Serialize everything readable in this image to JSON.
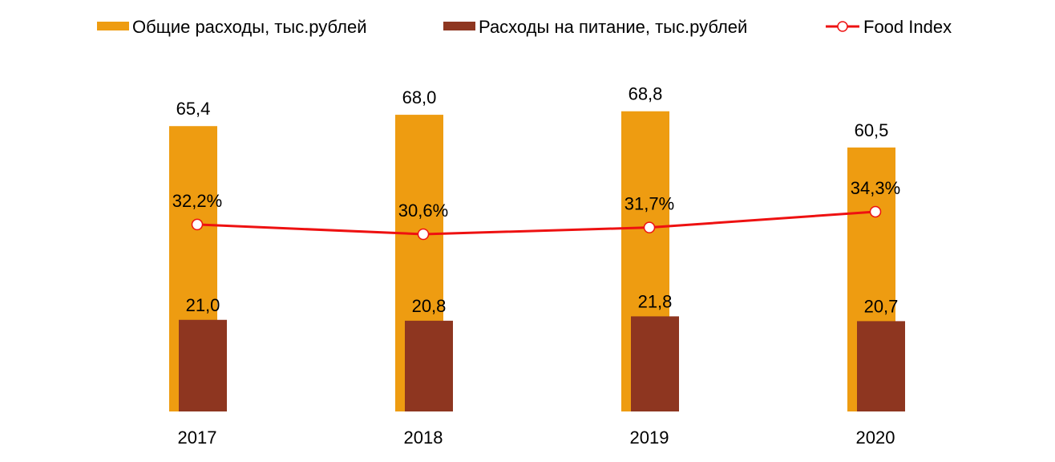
{
  "chart_data": {
    "type": "bar",
    "categories": [
      "2017",
      "2018",
      "2019",
      "2020"
    ],
    "series": [
      {
        "name": "Общие расходы, тыс.рублей",
        "type": "bar",
        "values": [
          65.4,
          68.0,
          68.8,
          60.5
        ],
        "labels": [
          "65,4",
          "68,0",
          "68,8",
          "60,5"
        ],
        "color": "#EE9C11"
      },
      {
        "name": "Расходы на питание, тыс.рублей",
        "type": "bar",
        "values": [
          21.0,
          20.8,
          21.8,
          20.7
        ],
        "labels": [
          "21,0",
          "20,8",
          "21,8",
          "20,7"
        ],
        "color": "#8E3620"
      },
      {
        "name": "Food Index",
        "type": "line",
        "axis": "secondary",
        "unit": "%",
        "values": [
          32.2,
          30.6,
          31.7,
          34.3
        ],
        "labels": [
          "32,2%",
          "30,6%",
          "31,7%",
          "34,3%"
        ],
        "color": "#EE1111"
      }
    ],
    "grid": false,
    "axes_visible": false,
    "legend": "top"
  }
}
